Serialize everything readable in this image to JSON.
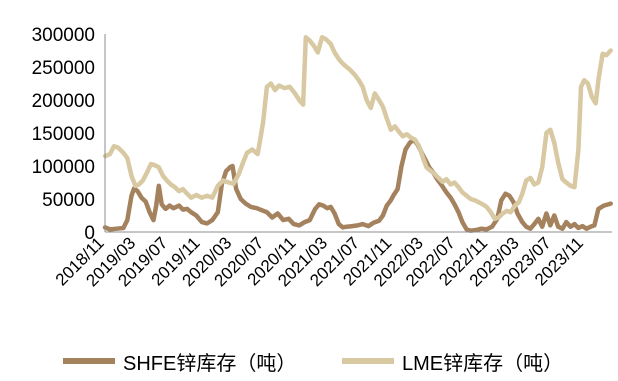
{
  "chart_data": {
    "type": "line",
    "title": "",
    "xlabel": "",
    "ylabel": "",
    "ylim": [
      0,
      300000
    ],
    "y_ticks": [
      "300000",
      "250000",
      "200000",
      "150000",
      "100000",
      "50000",
      "0"
    ],
    "x_ticks": [
      "2018/11",
      "2019/03",
      "2019/07",
      "2019/11",
      "2020/03",
      "2020/07",
      "2020/11",
      "2021/03",
      "2021/07",
      "2021/11",
      "2022/03",
      "2022/07",
      "2022/11",
      "2023/03",
      "2023/07",
      "2023/11"
    ],
    "x_range": [
      "2018-11-01",
      "2024-02-15"
    ],
    "grid": false,
    "legend_position": "bottom",
    "series": [
      {
        "name": "SHFE锌库存（吨）",
        "color": "#a5825e",
        "points": [
          [
            "2018-11-01",
            7000
          ],
          [
            "2018-11-20",
            4000
          ],
          [
            "2018-12-15",
            5000
          ],
          [
            "2019-01-10",
            6000
          ],
          [
            "2019-01-25",
            18000
          ],
          [
            "2019-02-10",
            55000
          ],
          [
            "2019-02-20",
            66000
          ],
          [
            "2019-03-05",
            62000
          ],
          [
            "2019-03-20",
            52000
          ],
          [
            "2019-04-05",
            46000
          ],
          [
            "2019-04-20",
            30000
          ],
          [
            "2019-05-05",
            18000
          ],
          [
            "2019-05-15",
            40000
          ],
          [
            "2019-05-25",
            70000
          ],
          [
            "2019-06-05",
            42000
          ],
          [
            "2019-06-20",
            35000
          ],
          [
            "2019-07-05",
            40000
          ],
          [
            "2019-07-20",
            36000
          ],
          [
            "2019-08-10",
            40000
          ],
          [
            "2019-08-25",
            34000
          ],
          [
            "2019-09-10",
            35000
          ],
          [
            "2019-09-25",
            30000
          ],
          [
            "2019-10-15",
            25000
          ],
          [
            "2019-11-05",
            15000
          ],
          [
            "2019-11-25",
            13000
          ],
          [
            "2019-12-15",
            18000
          ],
          [
            "2020-01-05",
            30000
          ],
          [
            "2020-01-20",
            72000
          ],
          [
            "2020-02-05",
            92000
          ],
          [
            "2020-02-20",
            98000
          ],
          [
            "2020-03-01",
            100000
          ],
          [
            "2020-03-15",
            65000
          ],
          [
            "2020-04-01",
            50000
          ],
          [
            "2020-04-20",
            43000
          ],
          [
            "2020-05-10",
            38000
          ],
          [
            "2020-06-01",
            36000
          ],
          [
            "2020-06-20",
            33000
          ],
          [
            "2020-07-10",
            30000
          ],
          [
            "2020-07-30",
            22000
          ],
          [
            "2020-08-20",
            28000
          ],
          [
            "2020-09-10",
            18000
          ],
          [
            "2020-10-01",
            20000
          ],
          [
            "2020-10-20",
            12000
          ],
          [
            "2020-11-10",
            10000
          ],
          [
            "2020-12-01",
            15000
          ],
          [
            "2020-12-20",
            18000
          ],
          [
            "2021-01-10",
            35000
          ],
          [
            "2021-01-25",
            42000
          ],
          [
            "2021-02-10",
            40000
          ],
          [
            "2021-02-25",
            36000
          ],
          [
            "2021-03-10",
            38000
          ],
          [
            "2021-03-25",
            28000
          ],
          [
            "2021-04-10",
            12000
          ],
          [
            "2021-04-25",
            7000
          ],
          [
            "2021-05-10",
            8000
          ],
          [
            "2021-06-01",
            9000
          ],
          [
            "2021-06-20",
            10000
          ],
          [
            "2021-07-10",
            12000
          ],
          [
            "2021-08-01",
            9000
          ],
          [
            "2021-08-20",
            14000
          ],
          [
            "2021-09-10",
            17000
          ],
          [
            "2021-09-25",
            25000
          ],
          [
            "2021-10-10",
            40000
          ],
          [
            "2021-10-25",
            48000
          ],
          [
            "2021-11-05",
            56000
          ],
          [
            "2021-11-20",
            65000
          ],
          [
            "2021-12-05",
            100000
          ],
          [
            "2021-12-20",
            125000
          ],
          [
            "2022-01-05",
            135000
          ],
          [
            "2022-01-20",
            140000
          ],
          [
            "2022-02-05",
            132000
          ],
          [
            "2022-02-20",
            120000
          ],
          [
            "2022-03-05",
            110000
          ],
          [
            "2022-03-20",
            98000
          ],
          [
            "2022-04-05",
            90000
          ],
          [
            "2022-04-20",
            80000
          ],
          [
            "2022-05-05",
            72000
          ],
          [
            "2022-05-25",
            60000
          ],
          [
            "2022-06-10",
            52000
          ],
          [
            "2022-06-25",
            42000
          ],
          [
            "2022-07-10",
            30000
          ],
          [
            "2022-07-25",
            15000
          ],
          [
            "2022-08-10",
            4000
          ],
          [
            "2022-08-25",
            2000
          ],
          [
            "2022-09-15",
            3000
          ],
          [
            "2022-10-05",
            5000
          ],
          [
            "2022-10-25",
            4000
          ],
          [
            "2022-11-15",
            8000
          ],
          [
            "2022-12-05",
            20000
          ],
          [
            "2022-12-20",
            48000
          ],
          [
            "2023-01-05",
            58000
          ],
          [
            "2023-01-20",
            55000
          ],
          [
            "2023-02-05",
            45000
          ],
          [
            "2023-02-20",
            28000
          ],
          [
            "2023-03-10",
            15000
          ],
          [
            "2023-03-25",
            8000
          ],
          [
            "2023-04-10",
            5000
          ],
          [
            "2023-04-25",
            12000
          ],
          [
            "2023-05-10",
            20000
          ],
          [
            "2023-05-25",
            8000
          ],
          [
            "2023-06-10",
            28000
          ],
          [
            "2023-06-25",
            10000
          ],
          [
            "2023-07-10",
            25000
          ],
          [
            "2023-07-25",
            8000
          ],
          [
            "2023-08-10",
            5000
          ],
          [
            "2023-08-25",
            15000
          ],
          [
            "2023-09-10",
            8000
          ],
          [
            "2023-09-25",
            12000
          ],
          [
            "2023-10-10",
            6000
          ],
          [
            "2023-10-25",
            9000
          ],
          [
            "2023-11-10",
            5000
          ],
          [
            "2023-11-25",
            8000
          ],
          [
            "2023-12-10",
            10000
          ],
          [
            "2023-12-25",
            35000
          ],
          [
            "2024-01-15",
            40000
          ],
          [
            "2024-02-10",
            43000
          ]
        ]
      },
      {
        "name": "LME锌库存（吨）",
        "color": "#d8c9a3",
        "points": [
          [
            "2018-11-01",
            115000
          ],
          [
            "2018-11-20",
            118000
          ],
          [
            "2018-12-05",
            130000
          ],
          [
            "2018-12-20",
            128000
          ],
          [
            "2019-01-10",
            120000
          ],
          [
            "2019-01-25",
            112000
          ],
          [
            "2019-02-10",
            85000
          ],
          [
            "2019-02-25",
            70000
          ],
          [
            "2019-03-10",
            72000
          ],
          [
            "2019-03-25",
            78000
          ],
          [
            "2019-04-10",
            90000
          ],
          [
            "2019-04-25",
            103000
          ],
          [
            "2019-05-10",
            101000
          ],
          [
            "2019-05-25",
            98000
          ],
          [
            "2019-06-10",
            85000
          ],
          [
            "2019-06-25",
            78000
          ],
          [
            "2019-07-10",
            72000
          ],
          [
            "2019-07-25",
            68000
          ],
          [
            "2019-08-10",
            62000
          ],
          [
            "2019-08-25",
            65000
          ],
          [
            "2019-09-10",
            58000
          ],
          [
            "2019-09-25",
            52000
          ],
          [
            "2019-10-15",
            56000
          ],
          [
            "2019-11-05",
            52000
          ],
          [
            "2019-11-25",
            55000
          ],
          [
            "2019-12-15",
            52000
          ],
          [
            "2020-01-05",
            70000
          ],
          [
            "2020-01-25",
            78000
          ],
          [
            "2020-02-15",
            75000
          ],
          [
            "2020-03-05",
            73000
          ],
          [
            "2020-03-25",
            88000
          ],
          [
            "2020-04-10",
            105000
          ],
          [
            "2020-04-25",
            120000
          ],
          [
            "2020-05-15",
            125000
          ],
          [
            "2020-06-05",
            118000
          ],
          [
            "2020-06-25",
            165000
          ],
          [
            "2020-07-10",
            220000
          ],
          [
            "2020-07-25",
            225000
          ],
          [
            "2020-08-10",
            215000
          ],
          [
            "2020-08-25",
            222000
          ],
          [
            "2020-09-15",
            218000
          ],
          [
            "2020-10-05",
            220000
          ],
          [
            "2020-10-25",
            210000
          ],
          [
            "2020-11-10",
            200000
          ],
          [
            "2020-11-25",
            193000
          ],
          [
            "2020-12-05",
            295000
          ],
          [
            "2020-12-20",
            290000
          ],
          [
            "2021-01-05",
            282000
          ],
          [
            "2021-01-20",
            272000
          ],
          [
            "2021-02-05",
            295000
          ],
          [
            "2021-02-20",
            292000
          ],
          [
            "2021-03-10",
            285000
          ],
          [
            "2021-03-25",
            272000
          ],
          [
            "2021-04-10",
            262000
          ],
          [
            "2021-04-25",
            255000
          ],
          [
            "2021-05-10",
            250000
          ],
          [
            "2021-05-25",
            245000
          ],
          [
            "2021-06-10",
            238000
          ],
          [
            "2021-06-25",
            230000
          ],
          [
            "2021-07-10",
            220000
          ],
          [
            "2021-07-25",
            200000
          ],
          [
            "2021-08-10",
            188000
          ],
          [
            "2021-08-25",
            210000
          ],
          [
            "2021-09-10",
            200000
          ],
          [
            "2021-09-25",
            190000
          ],
          [
            "2021-10-10",
            172000
          ],
          [
            "2021-10-25",
            155000
          ],
          [
            "2021-11-10",
            160000
          ],
          [
            "2021-11-25",
            152000
          ],
          [
            "2021-12-10",
            145000
          ],
          [
            "2021-12-25",
            148000
          ],
          [
            "2022-01-10",
            143000
          ],
          [
            "2022-01-25",
            140000
          ],
          [
            "2022-02-10",
            130000
          ],
          [
            "2022-02-25",
            112000
          ],
          [
            "2022-03-10",
            98000
          ],
          [
            "2022-03-25",
            93000
          ],
          [
            "2022-04-10",
            88000
          ],
          [
            "2022-04-25",
            82000
          ],
          [
            "2022-05-10",
            76000
          ],
          [
            "2022-05-25",
            80000
          ],
          [
            "2022-06-10",
            72000
          ],
          [
            "2022-06-25",
            75000
          ],
          [
            "2022-07-10",
            68000
          ],
          [
            "2022-07-25",
            60000
          ],
          [
            "2022-08-10",
            55000
          ],
          [
            "2022-08-25",
            50000
          ],
          [
            "2022-09-10",
            48000
          ],
          [
            "2022-09-25",
            45000
          ],
          [
            "2022-10-10",
            42000
          ],
          [
            "2022-10-25",
            38000
          ],
          [
            "2022-11-10",
            30000
          ],
          [
            "2022-11-25",
            20000
          ],
          [
            "2022-12-10",
            22000
          ],
          [
            "2022-12-25",
            28000
          ],
          [
            "2023-01-10",
            32000
          ],
          [
            "2023-01-25",
            30000
          ],
          [
            "2023-02-10",
            40000
          ],
          [
            "2023-02-25",
            45000
          ],
          [
            "2023-03-10",
            58000
          ],
          [
            "2023-03-25",
            78000
          ],
          [
            "2023-04-10",
            82000
          ],
          [
            "2023-04-25",
            72000
          ],
          [
            "2023-05-10",
            75000
          ],
          [
            "2023-05-25",
            98000
          ],
          [
            "2023-06-10",
            150000
          ],
          [
            "2023-06-25",
            155000
          ],
          [
            "2023-07-10",
            135000
          ],
          [
            "2023-07-25",
            105000
          ],
          [
            "2023-08-10",
            80000
          ],
          [
            "2023-08-25",
            75000
          ],
          [
            "2023-09-10",
            70000
          ],
          [
            "2023-09-25",
            68000
          ],
          [
            "2023-10-10",
            125000
          ],
          [
            "2023-10-20",
            220000
          ],
          [
            "2023-11-01",
            230000
          ],
          [
            "2023-11-15",
            225000
          ],
          [
            "2023-11-30",
            205000
          ],
          [
            "2023-12-15",
            195000
          ],
          [
            "2023-12-25",
            230000
          ],
          [
            "2024-01-10",
            270000
          ],
          [
            "2024-01-25",
            268000
          ],
          [
            "2024-02-10",
            275000
          ]
        ]
      }
    ]
  }
}
